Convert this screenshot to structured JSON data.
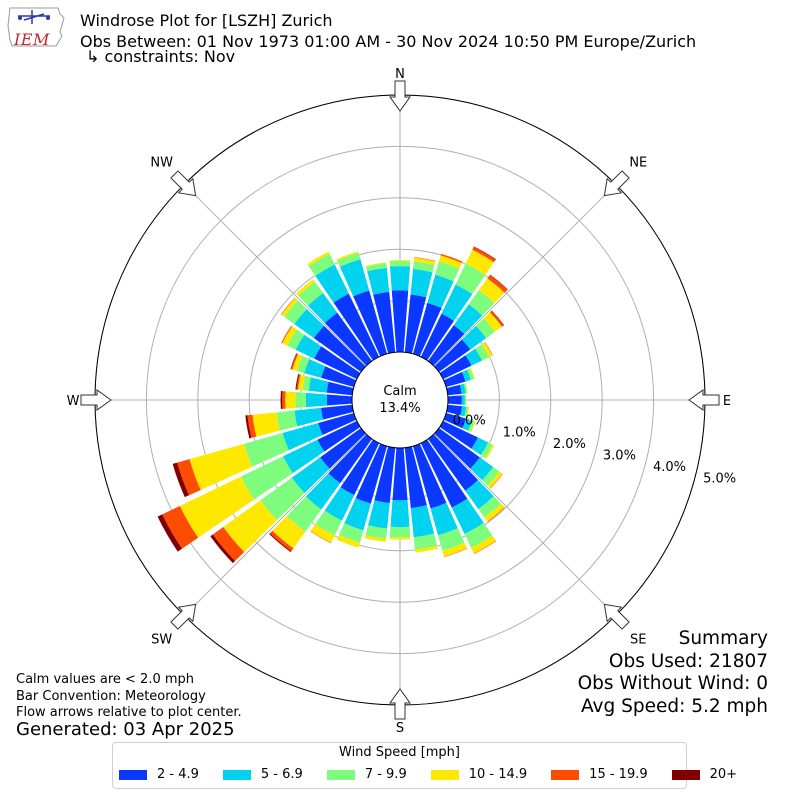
{
  "header": {
    "title": "Windrose Plot for [LSZH] Zurich",
    "obs_between": "Obs Between: 01 Nov 1973 01:00 AM - 30 Nov 2024 10:50 PM Europe/Zurich",
    "constraints": "↳ constraints: Nov"
  },
  "logo": {
    "text": "IEM"
  },
  "notes": {
    "calm_def": "Calm values are < 2.0 mph",
    "bar_convention": "Bar Convention: Meteorology",
    "flow_arrows": "Flow arrows relative to plot center.",
    "generated": "Generated: 03 Apr 2025"
  },
  "summary": {
    "title": "Summary",
    "obs_used": "Obs Used: 21807",
    "obs_without_wind": "Obs Without Wind: 0",
    "avg_speed": "Avg Speed: 5.2 mph"
  },
  "colors": {
    "bins": [
      "#0a38ff",
      "#00d2f0",
      "#7dfc7d",
      "#ffe800",
      "#ff4c00",
      "#800000"
    ],
    "grid": "#b0b0b0"
  },
  "chart_data": {
    "type": "windrose",
    "calm": {
      "label": "Calm",
      "value_text": "13.4%",
      "value": 13.4
    },
    "compass_labels": [
      "N",
      "NE",
      "E",
      "SE",
      "S",
      "SW",
      "W",
      "NW"
    ],
    "radial_tick_labels": [
      "0.0%",
      "1.0%",
      "2.0%",
      "3.0%",
      "4.0%",
      "5.0%"
    ],
    "radial_ticks": [
      0,
      1,
      2,
      3,
      4,
      5
    ],
    "rmax": 5.0,
    "units": "%",
    "legend": {
      "title": "Wind Speed [mph]",
      "bins": [
        "2 - 4.9",
        "5 - 6.9",
        "7 - 9.9",
        "10 - 14.9",
        "15 - 19.9",
        "20+"
      ]
    },
    "directions": [
      0,
      10,
      20,
      30,
      40,
      50,
      60,
      70,
      80,
      90,
      100,
      110,
      120,
      130,
      140,
      150,
      160,
      170,
      180,
      190,
      200,
      210,
      220,
      230,
      240,
      250,
      260,
      270,
      280,
      290,
      300,
      310,
      320,
      330,
      340,
      350
    ],
    "series": [
      {
        "name": "2 - 4.9",
        "values": [
          1.2,
          1.13,
          1.03,
          0.93,
          0.86,
          0.75,
          0.61,
          0.39,
          0.27,
          0.27,
          0.28,
          0.4,
          0.75,
          0.98,
          1.24,
          1.39,
          1.26,
          1.18,
          1.02,
          1.08,
          1.16,
          1.12,
          1.06,
          0.98,
          0.85,
          0.72,
          0.61,
          0.49,
          0.5,
          0.66,
          0.92,
          1.13,
          1.16,
          1.36,
          1.28,
          1.18
        ]
      },
      {
        "name": "5 - 6.9",
        "values": [
          0.47,
          0.5,
          0.57,
          0.63,
          0.5,
          0.38,
          0.23,
          0.11,
          0.08,
          0.06,
          0.08,
          0.12,
          0.22,
          0.32,
          0.44,
          0.57,
          0.54,
          0.57,
          0.52,
          0.5,
          0.54,
          0.55,
          0.63,
          0.68,
          0.74,
          0.72,
          0.52,
          0.41,
          0.35,
          0.34,
          0.4,
          0.47,
          0.47,
          0.63,
          0.63,
          0.47
        ]
      },
      {
        "name": "7 - 9.9",
        "values": [
          0.1,
          0.15,
          0.27,
          0.45,
          0.34,
          0.21,
          0.15,
          0.06,
          0.03,
          0.02,
          0.04,
          0.05,
          0.1,
          0.15,
          0.2,
          0.3,
          0.31,
          0.24,
          0.2,
          0.2,
          0.25,
          0.32,
          0.53,
          0.75,
          0.91,
          0.78,
          0.35,
          0.2,
          0.12,
          0.15,
          0.18,
          0.24,
          0.27,
          0.23,
          0.13,
          0.09
        ]
      },
      {
        "name": "10 - 14.9",
        "values": [
          0.02,
          0.07,
          0.12,
          0.3,
          0.28,
          0.17,
          0.07,
          0.02,
          0.01,
          0.01,
          0.02,
          0.02,
          0.03,
          0.07,
          0.1,
          0.12,
          0.12,
          0.06,
          0.04,
          0.06,
          0.1,
          0.16,
          0.4,
          0.89,
          1.32,
          1.1,
          0.47,
          0.2,
          0.09,
          0.09,
          0.11,
          0.07,
          0.06,
          0.05,
          0.03,
          0.02
        ]
      },
      {
        "name": "15 - 19.9",
        "values": [
          0.0,
          0.01,
          0.03,
          0.06,
          0.08,
          0.04,
          0.01,
          0.0,
          0.0,
          0.0,
          0.0,
          0.0,
          0.0,
          0.01,
          0.01,
          0.01,
          0.01,
          0.0,
          0.0,
          0.0,
          0.0,
          0.01,
          0.07,
          0.25,
          0.38,
          0.25,
          0.1,
          0.06,
          0.03,
          0.03,
          0.02,
          0.01,
          0.0,
          0.0,
          0.0,
          0.0
        ]
      },
      {
        "name": "20+",
        "values": [
          0.0,
          0.0,
          0.0,
          0.01,
          0.01,
          0.01,
          0.0,
          0.0,
          0.0,
          0.0,
          0.0,
          0.0,
          0.0,
          0.0,
          0.0,
          0.0,
          0.0,
          0.0,
          0.0,
          0.0,
          0.0,
          0.0,
          0.02,
          0.06,
          0.1,
          0.09,
          0.04,
          0.03,
          0.02,
          0.01,
          0.0,
          0.0,
          0.0,
          0.0,
          0.0,
          0.0
        ]
      }
    ]
  }
}
